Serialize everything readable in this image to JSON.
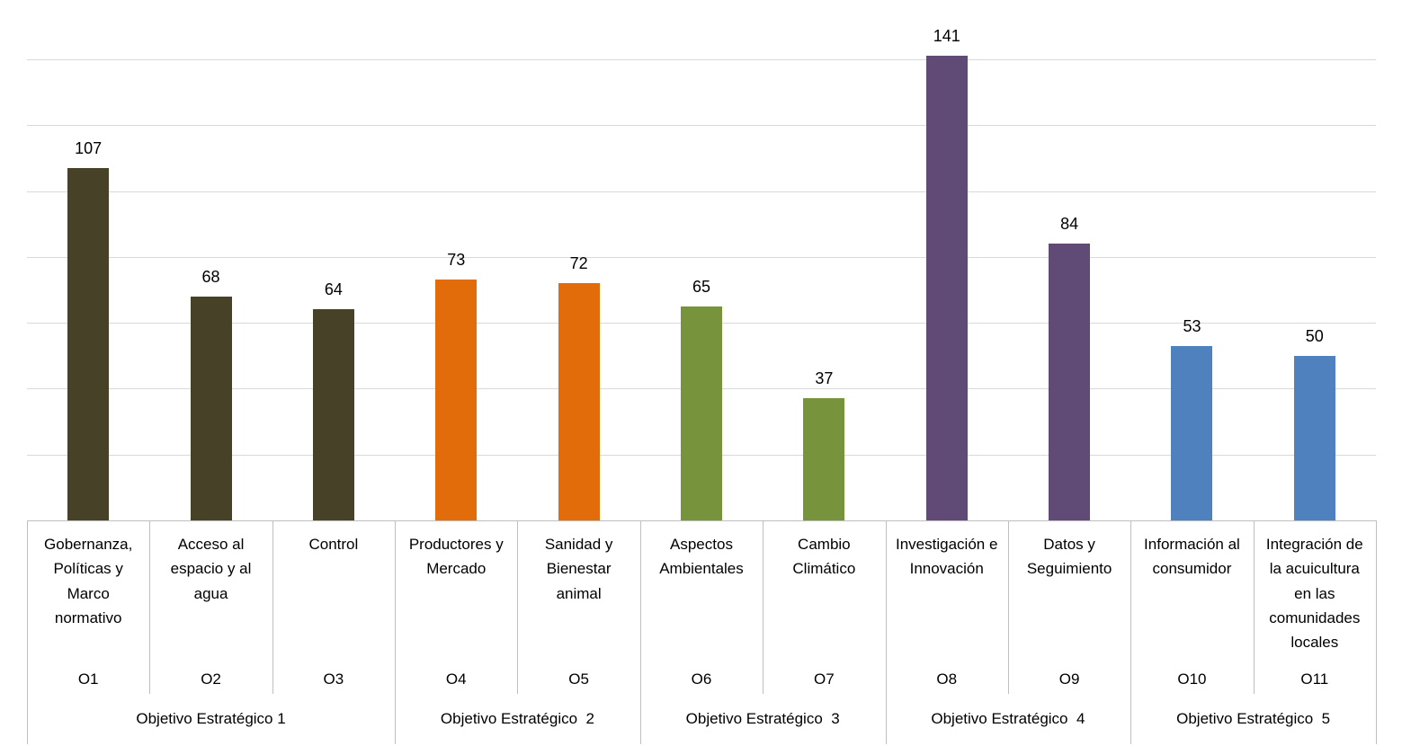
{
  "chart_data": {
    "type": "bar",
    "title": "",
    "xlabel": "",
    "ylabel": "",
    "ylim": [
      0,
      140
    ],
    "gridline_step": 20,
    "grid": true,
    "legend": false,
    "data_labels": true,
    "y_axis_labels_visible": false,
    "values": [
      107,
      68,
      64,
      73,
      72,
      65,
      37,
      141,
      84,
      53,
      50
    ],
    "categories": [
      "Gobernanza, Políticas y Marco normativo",
      "Acceso al espacio y al agua",
      "Control",
      "Productores y Mercado",
      "Sanidad y Bienestar animal",
      "Aspectos Ambientales",
      "Cambio Climático",
      "Investigación e Innovación",
      "Datos y Seguimiento",
      "Información al consumidor",
      "Integración de la acuicultura en las comunidades locales"
    ],
    "category_label_lines": [
      [
        "Gobernanza,",
        "Políticas y",
        "Marco",
        "normativo"
      ],
      [
        "Acceso al",
        "espacio y al",
        "agua"
      ],
      [
        "Control"
      ],
      [
        "Productores y",
        "Mercado"
      ],
      [
        "Sanidad y",
        "Bienestar",
        "animal"
      ],
      [
        "Aspectos",
        "Ambientales"
      ],
      [
        "Cambio",
        "Climático"
      ],
      [
        "Investigación e",
        "Innovación"
      ],
      [
        "Datos y",
        "Seguimiento"
      ],
      [
        "Información al",
        "consumidor"
      ],
      [
        "Integración de",
        "la acuicultura",
        "en las",
        "comunidades",
        "locales"
      ]
    ],
    "category_codes": [
      "O1",
      "O2",
      "O3",
      "O4",
      "O5",
      "O6",
      "O7",
      "O8",
      "O9",
      "O10",
      "O11"
    ],
    "groups": [
      {
        "label": "Objetivo Estratégico 1",
        "categories": [
          "O1",
          "O2",
          "O3"
        ],
        "count": 3,
        "color": "#474127"
      },
      {
        "label": "Objetivo Estratégico  2",
        "categories": [
          "O4",
          "O5"
        ],
        "count": 2,
        "color": "#E36C0A"
      },
      {
        "label": "Objetivo Estratégico  3",
        "categories": [
          "O6",
          "O7"
        ],
        "count": 2,
        "color": "#77933C"
      },
      {
        "label": "Objetivo Estratégico  4",
        "categories": [
          "O8",
          "O9"
        ],
        "count": 2,
        "color": "#5F4B76"
      },
      {
        "label": "Objetivo Estratégico  5",
        "categories": [
          "O10",
          "O11"
        ],
        "count": 2,
        "color": "#4E81BD"
      }
    ],
    "colors": {
      "background": "#FFFFFF",
      "gridline": "#D9D9D9",
      "axis_line": "#BFBFBF",
      "label_text": "#000000"
    }
  }
}
